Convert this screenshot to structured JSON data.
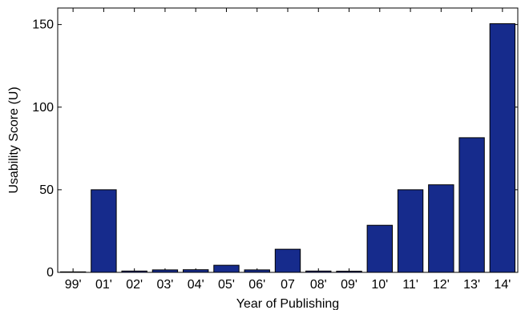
{
  "chart_data": {
    "type": "bar",
    "categories": [
      "99'",
      "01'",
      "02'",
      "03'",
      "04'",
      "05'",
      "06'",
      "07",
      "08'",
      "09'",
      "10'",
      "11'",
      "12'",
      "13'",
      "14'"
    ],
    "values": [
      0.3,
      50,
      0.8,
      1.5,
      1.6,
      4.3,
      1.5,
      14,
      0.8,
      0.7,
      28.5,
      50,
      53,
      81.5,
      150.5
    ],
    "title": "",
    "xlabel": "Year of Publishing",
    "ylabel": "Usability Score (U)",
    "ylim": [
      0,
      160
    ],
    "yticks": [
      0,
      50,
      100,
      150
    ],
    "grid": false,
    "bar_color": "#162b8c",
    "bar_edge_color": "#000000"
  }
}
